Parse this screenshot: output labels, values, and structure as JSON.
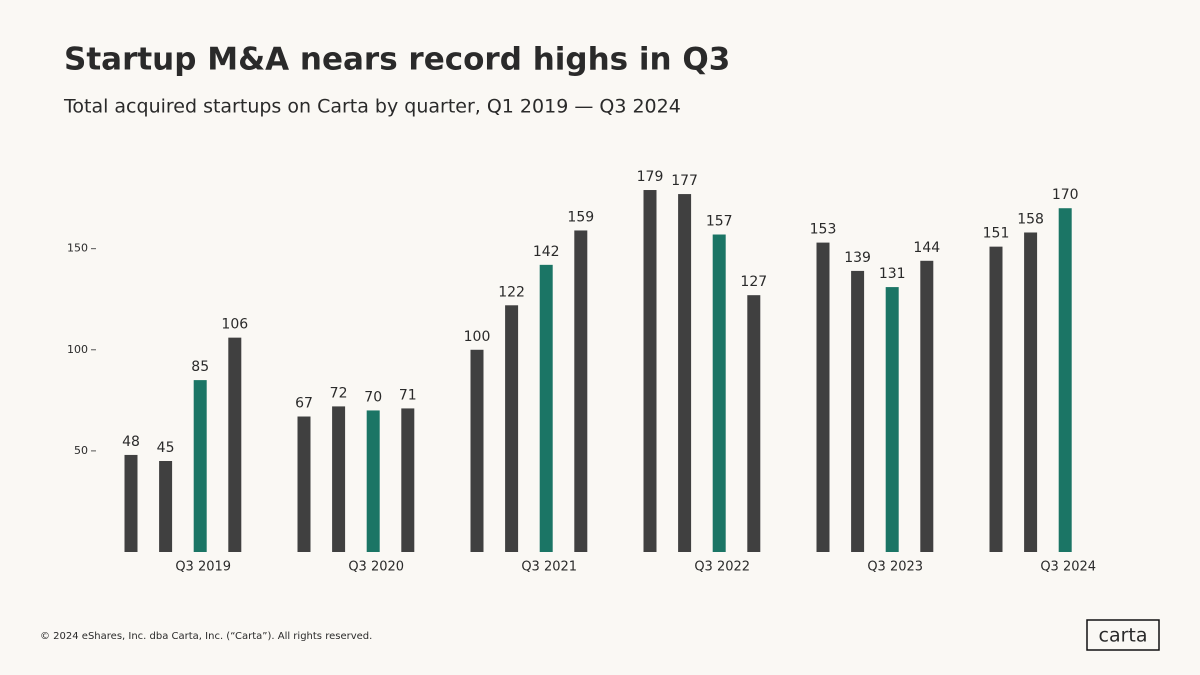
{
  "chart_data": {
    "type": "bar",
    "title": "Startup M&A nears record highs in Q3",
    "subtitle": "Total acquired startups on Carta by quarter, Q1 2019 — Q3 2024",
    "categories": [
      null,
      null,
      "Q3 2019",
      null,
      null,
      null,
      "Q3 2020",
      null,
      null,
      null,
      "Q3 2021",
      null,
      null,
      null,
      "Q3 2022",
      null,
      null,
      null,
      "Q3 2023",
      null,
      null,
      null,
      "Q3 2024"
    ],
    "values": [
      48,
      45,
      85,
      106,
      67,
      72,
      70,
      71,
      100,
      122,
      142,
      159,
      179,
      177,
      157,
      127,
      153,
      139,
      131,
      144,
      151,
      158,
      170
    ],
    "color": "#404040",
    "highlight_color": "#1b7565",
    "ylim": [
      0,
      180
    ],
    "yticks": [
      50,
      100,
      150
    ],
    "grid": false
  },
  "footer": {
    "copyright": "© 2024 eShares, Inc. dba Carta, Inc. (“Carta”). All rights reserved.",
    "logo": "carta"
  }
}
